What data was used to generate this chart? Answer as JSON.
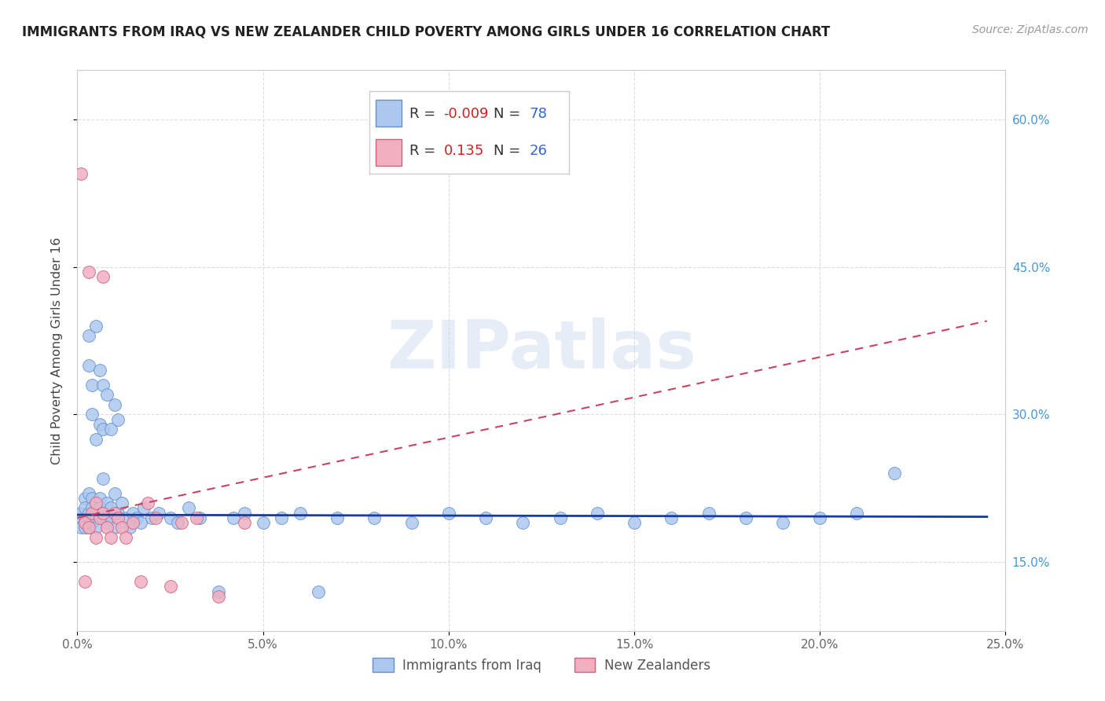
{
  "title": "IMMIGRANTS FROM IRAQ VS NEW ZEALANDER CHILD POVERTY AMONG GIRLS UNDER 16 CORRELATION CHART",
  "source": "Source: ZipAtlas.com",
  "ylabel": "Child Poverty Among Girls Under 16",
  "xlim": [
    0.0,
    0.25
  ],
  "ylim": [
    0.08,
    0.65
  ],
  "xtick_vals": [
    0.0,
    0.05,
    0.1,
    0.15,
    0.2,
    0.25
  ],
  "ytick_vals": [
    0.15,
    0.3,
    0.45,
    0.6
  ],
  "blue_r": -0.009,
  "blue_n": 78,
  "pink_r": 0.135,
  "pink_n": 26,
  "blue_face": "#adc8ee",
  "pink_face": "#f0b0c0",
  "blue_edge": "#6090d0",
  "pink_edge": "#d06080",
  "trend_blue": "#1a3a9c",
  "trend_pink": "#d04060",
  "watermark": "ZIPatlas",
  "label_blue": "Immigrants from Iraq",
  "label_pink": "New Zealanders",
  "bg_color": "#ffffff",
  "grid_color": "#d8dfe8",
  "title_color": "#222222",
  "axis_label_color": "#444444",
  "tick_color_blue": "#4499dd",
  "tick_color_x": "#666666",
  "source_color": "#999999",
  "legend_r_color": "#cc2222",
  "legend_n_color": "#3366cc",
  "legend_text_color": "#333333",
  "blue_x": [
    0.001,
    0.001,
    0.001,
    0.002,
    0.002,
    0.002,
    0.002,
    0.003,
    0.003,
    0.003,
    0.003,
    0.004,
    0.004,
    0.004,
    0.005,
    0.005,
    0.005,
    0.006,
    0.006,
    0.007,
    0.007,
    0.008,
    0.008,
    0.009,
    0.009,
    0.01,
    0.01,
    0.011,
    0.012,
    0.013,
    0.014,
    0.015,
    0.016,
    0.017,
    0.018,
    0.02,
    0.022,
    0.025,
    0.027,
    0.03,
    0.033,
    0.038,
    0.042,
    0.045,
    0.05,
    0.055,
    0.06,
    0.065,
    0.07,
    0.08,
    0.09,
    0.1,
    0.11,
    0.12,
    0.13,
    0.14,
    0.15,
    0.16,
    0.17,
    0.18,
    0.19,
    0.2,
    0.21,
    0.22,
    0.003,
    0.003,
    0.004,
    0.004,
    0.005,
    0.005,
    0.006,
    0.006,
    0.007,
    0.007,
    0.008,
    0.009,
    0.01,
    0.011
  ],
  "blue_y": [
    0.195,
    0.185,
    0.2,
    0.215,
    0.19,
    0.205,
    0.185,
    0.22,
    0.195,
    0.185,
    0.2,
    0.215,
    0.205,
    0.19,
    0.195,
    0.185,
    0.2,
    0.215,
    0.205,
    0.235,
    0.195,
    0.21,
    0.19,
    0.205,
    0.195,
    0.22,
    0.185,
    0.2,
    0.21,
    0.195,
    0.185,
    0.2,
    0.195,
    0.19,
    0.205,
    0.195,
    0.2,
    0.195,
    0.19,
    0.205,
    0.195,
    0.12,
    0.195,
    0.2,
    0.19,
    0.195,
    0.2,
    0.12,
    0.195,
    0.195,
    0.19,
    0.2,
    0.195,
    0.19,
    0.195,
    0.2,
    0.19,
    0.195,
    0.2,
    0.195,
    0.19,
    0.195,
    0.2,
    0.24,
    0.35,
    0.38,
    0.33,
    0.3,
    0.39,
    0.275,
    0.345,
    0.29,
    0.285,
    0.33,
    0.32,
    0.285,
    0.31,
    0.295
  ],
  "pink_x": [
    0.001,
    0.002,
    0.002,
    0.003,
    0.003,
    0.004,
    0.005,
    0.005,
    0.006,
    0.007,
    0.007,
    0.008,
    0.009,
    0.01,
    0.011,
    0.012,
    0.013,
    0.015,
    0.017,
    0.019,
    0.021,
    0.025,
    0.028,
    0.032,
    0.038,
    0.045
  ],
  "pink_y": [
    0.545,
    0.13,
    0.19,
    0.445,
    0.185,
    0.2,
    0.175,
    0.21,
    0.195,
    0.2,
    0.44,
    0.185,
    0.175,
    0.2,
    0.195,
    0.185,
    0.175,
    0.19,
    0.13,
    0.21,
    0.195,
    0.125,
    0.19,
    0.195,
    0.115,
    0.19
  ],
  "trend_blue_x0": 0.0,
  "trend_blue_x1": 0.245,
  "trend_blue_y0": 0.198,
  "trend_blue_y1": 0.196,
  "trend_pink_x0": 0.0,
  "trend_pink_x1": 0.245,
  "trend_pink_y0": 0.195,
  "trend_pink_y1": 0.395
}
